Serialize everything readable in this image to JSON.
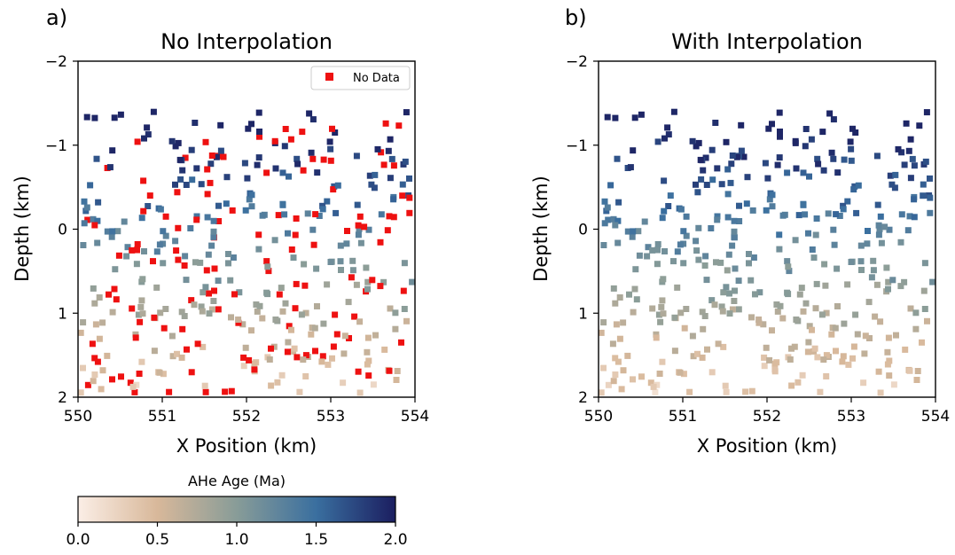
{
  "chart_data": [
    {
      "type": "scatter",
      "panel_label": "a)",
      "title": "No Interpolation",
      "xlabel": "X Position (km)",
      "ylabel": "Depth (km)",
      "xlim": [
        550,
        554
      ],
      "ylim": [
        2,
        -2
      ],
      "x_ticks": [
        "550",
        "551",
        "552",
        "553",
        "554"
      ],
      "y_ticks": [
        "−2",
        "−1",
        "0",
        "1",
        "2"
      ],
      "marker": "square",
      "color_by": "AHe Age (Ma)",
      "legend": {
        "label": "No Data",
        "color": "#ee1111",
        "placement": "top-right"
      },
      "nodata_points": "all points",
      "seed": 7,
      "n_points": 420,
      "nodata_fraction": 0.3
    },
    {
      "type": "scatter",
      "panel_label": "b)",
      "title": "With Interpolation",
      "xlabel": "X Position (km)",
      "ylabel": "Depth (km)",
      "xlim": [
        550,
        554
      ],
      "ylim": [
        2,
        -2
      ],
      "x_ticks": [
        "550",
        "551",
        "552",
        "553",
        "554"
      ],
      "y_ticks": [
        "−2",
        "−1",
        "0",
        "1",
        "2"
      ],
      "marker": "square",
      "color_by": "AHe Age (Ma)",
      "seed": 7,
      "n_points": 420
    }
  ],
  "colorbar": {
    "label": "AHe Age (Ma)",
    "ticks": [
      "0.0",
      "0.5",
      "1.0",
      "1.5",
      "2.0"
    ],
    "range": [
      0.0,
      2.0
    ],
    "colors": [
      "#fbeee6",
      "#d8b89a",
      "#889c98",
      "#3a6f9f",
      "#1b1e60"
    ]
  }
}
